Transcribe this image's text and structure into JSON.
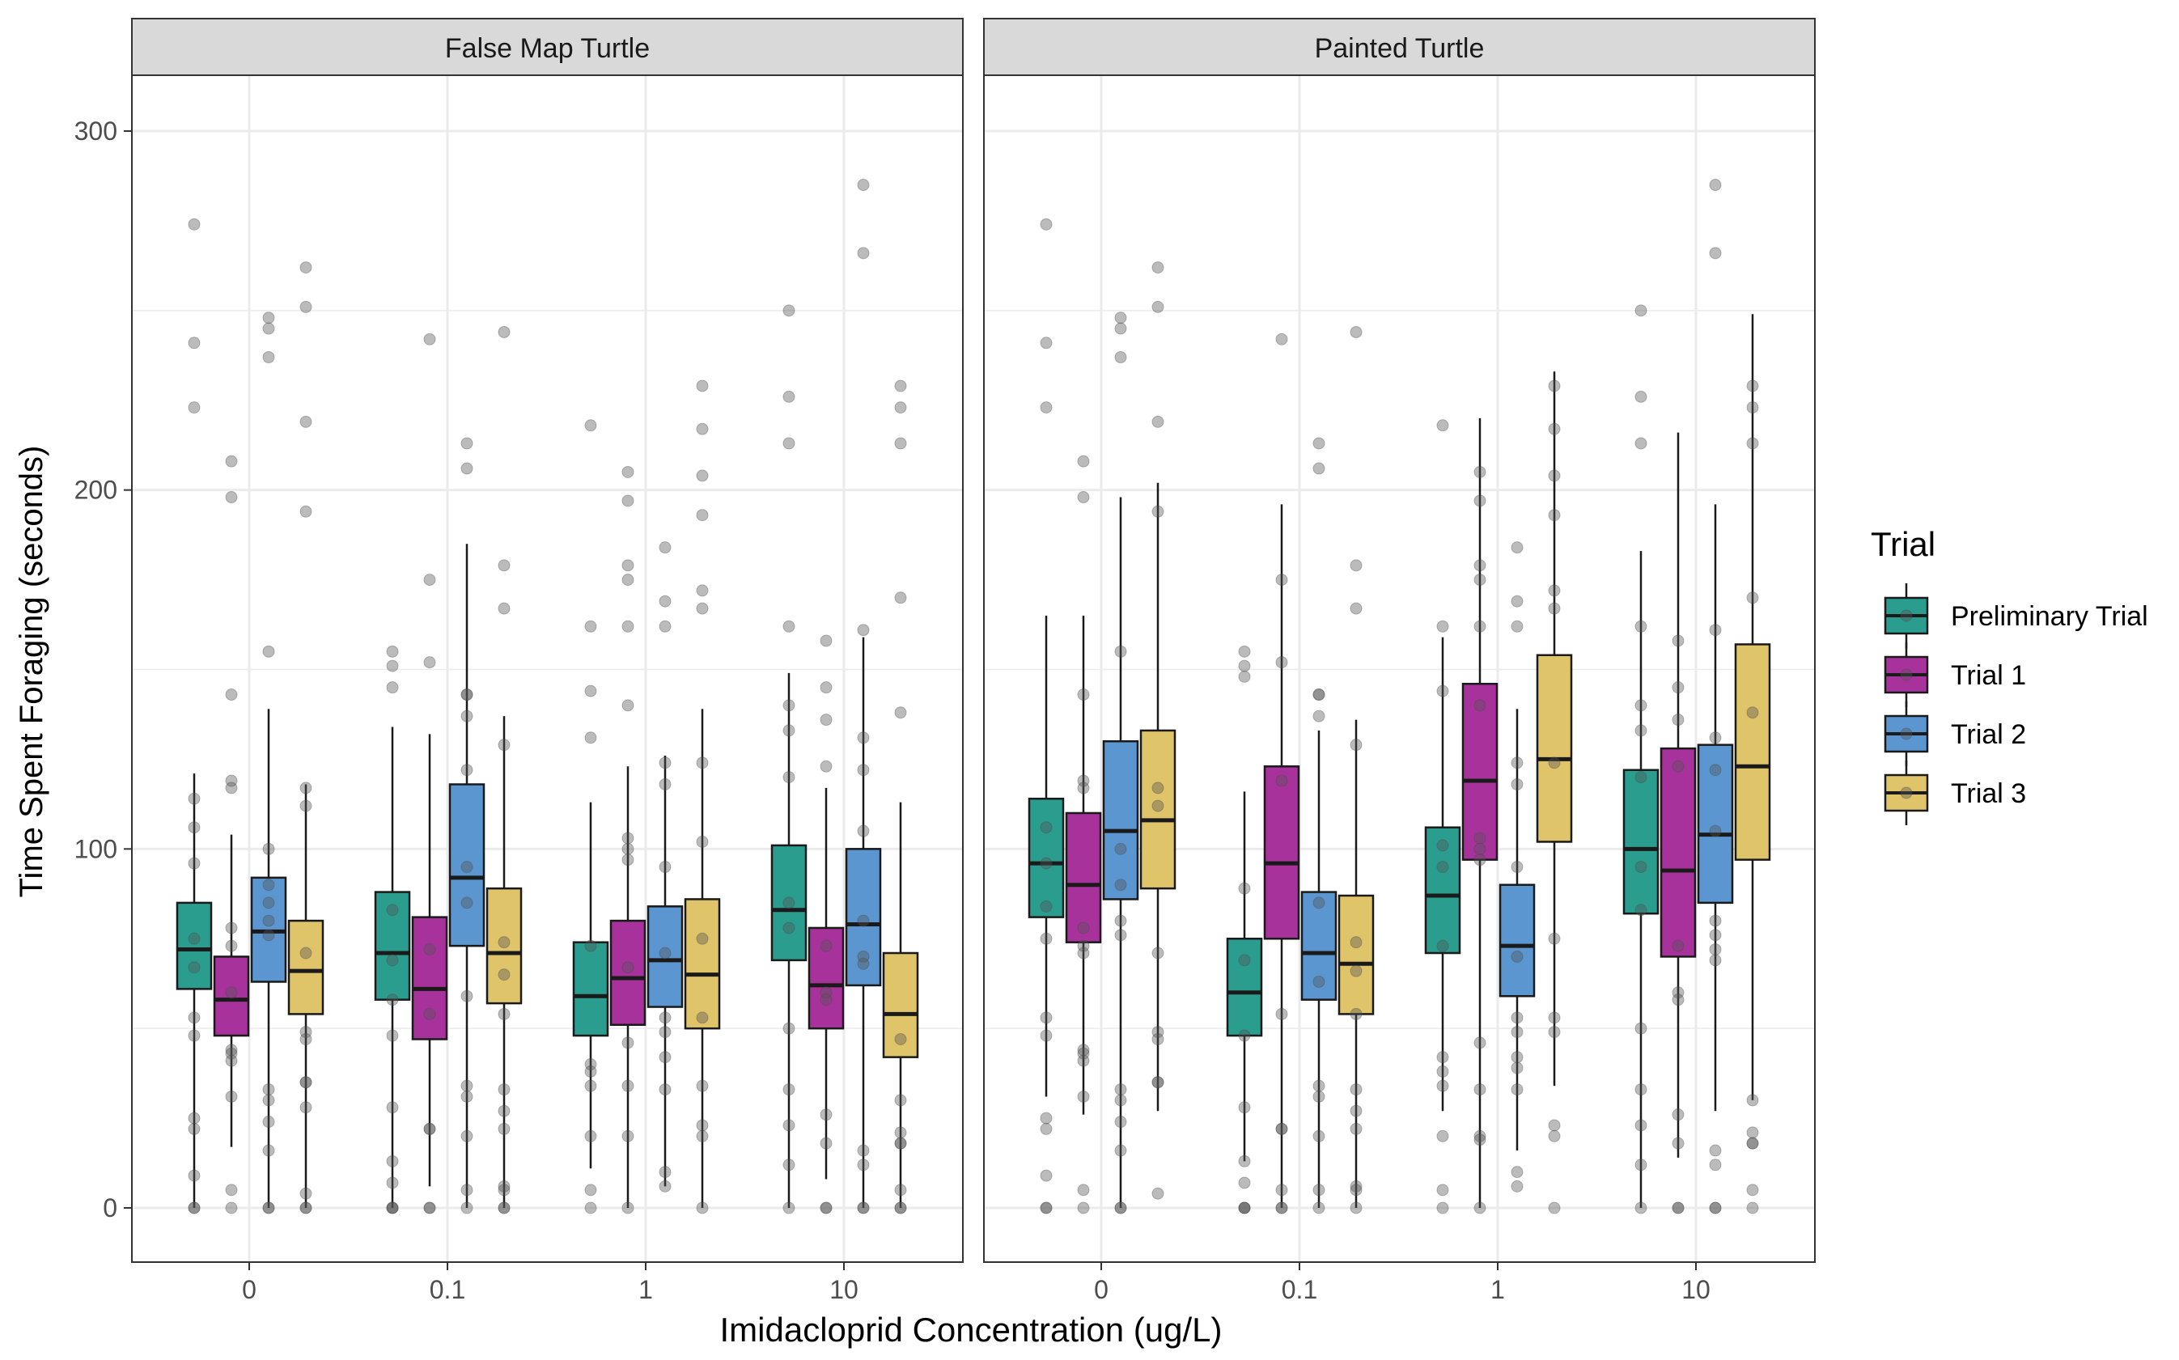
{
  "chart_data": {
    "type": "boxplot",
    "xlabel": "Imidacloprid Concentration (ug/L)",
    "ylabel": "Time Spent Foraging (seconds)",
    "ylim": [
      -15,
      315
    ],
    "y_ticks": [
      0,
      100,
      200,
      300
    ],
    "categories": [
      "0",
      "0.1",
      "1",
      "10"
    ],
    "grid": true,
    "legend": {
      "title": "Trial",
      "position": "right",
      "entries": [
        "Preliminary Trial",
        "Trial 1",
        "Trial 2",
        "Trial 3"
      ]
    },
    "colors": {
      "Preliminary Trial": "#2a9d8f",
      "Trial 1": "#a8329b",
      "Trial 2": "#5b96d0",
      "Trial 3": "#e0c46a",
      "points": "#555555",
      "strip_bg": "#d9d9d9",
      "grid": "#ebebeb"
    },
    "panels": [
      {
        "title": "False Map Turtle",
        "groups": [
          {
            "category": "0",
            "trial": "Preliminary Trial",
            "whisker_low": 0,
            "q1": 61,
            "median": 72,
            "q3": 85,
            "whisker_high": 121,
            "points": [
              274,
              241,
              223,
              114,
              106,
              96,
              75,
              67,
              53,
              48,
              25,
              22,
              9,
              0,
              0
            ]
          },
          {
            "category": "0",
            "trial": "Trial 1",
            "whisker_low": 17,
            "q1": 48,
            "median": 58,
            "q3": 70,
            "whisker_high": 104,
            "points": [
              208,
              198,
              143,
              119,
              117,
              78,
              73,
              60,
              44,
              43,
              41,
              31,
              5,
              0
            ]
          },
          {
            "category": "0",
            "trial": "Trial 2",
            "whisker_low": 0,
            "q1": 63,
            "median": 77,
            "q3": 92,
            "whisker_high": 139,
            "points": [
              248,
              245,
              237,
              155,
              100,
              90,
              85,
              80,
              76,
              33,
              30,
              24,
              16,
              0,
              0
            ]
          },
          {
            "category": "0",
            "trial": "Trial 3",
            "whisker_low": 0,
            "q1": 54,
            "median": 66,
            "q3": 80,
            "whisker_high": 118,
            "points": [
              262,
              251,
              219,
              194,
              117,
              112,
              71,
              49,
              47,
              35,
              35,
              28,
              4,
              0,
              0
            ]
          },
          {
            "category": "0.1",
            "trial": "Preliminary Trial",
            "whisker_low": 0,
            "q1": 58,
            "median": 71,
            "q3": 88,
            "whisker_high": 134,
            "points": [
              155,
              151,
              145,
              83,
              69,
              58,
              48,
              28,
              13,
              7,
              0,
              0,
              0
            ]
          },
          {
            "category": "0.1",
            "trial": "Trial 1",
            "whisker_low": 6,
            "q1": 47,
            "median": 61,
            "q3": 81,
            "whisker_high": 132,
            "points": [
              242,
              175,
              152,
              72,
              54,
              22,
              22,
              0,
              0
            ]
          },
          {
            "category": "0.1",
            "trial": "Trial 2",
            "whisker_low": 0,
            "q1": 73,
            "median": 92,
            "q3": 118,
            "whisker_high": 185,
            "points": [
              213,
              206,
              143,
              143,
              137,
              122,
              95,
              85,
              59,
              34,
              31,
              20,
              5,
              0
            ]
          },
          {
            "category": "0.1",
            "trial": "Trial 3",
            "whisker_low": 0,
            "q1": 57,
            "median": 71,
            "q3": 89,
            "whisker_high": 137,
            "points": [
              244,
              179,
              167,
              129,
              74,
              65,
              54,
              33,
              27,
              22,
              6,
              5,
              0,
              0
            ]
          },
          {
            "category": "1",
            "trial": "Preliminary Trial",
            "whisker_low": 11,
            "q1": 48,
            "median": 59,
            "q3": 74,
            "whisker_high": 113,
            "points": [
              218,
              162,
              144,
              131,
              73,
              40,
              38,
              34,
              20,
              5,
              0
            ]
          },
          {
            "category": "1",
            "trial": "Trial 1",
            "whisker_low": 0,
            "q1": 51,
            "median": 64,
            "q3": 80,
            "whisker_high": 123,
            "points": [
              205,
              197,
              179,
              175,
              162,
              140,
              103,
              100,
              97,
              67,
              46,
              34,
              20,
              0
            ]
          },
          {
            "category": "1",
            "trial": "Trial 2",
            "whisker_low": 6,
            "q1": 56,
            "median": 69,
            "q3": 84,
            "whisker_high": 126,
            "points": [
              184,
              169,
              162,
              124,
              118,
              95,
              71,
              53,
              49,
              42,
              33,
              10,
              6
            ]
          },
          {
            "category": "1",
            "trial": "Trial 3",
            "whisker_low": 0,
            "q1": 50,
            "median": 65,
            "q3": 86,
            "whisker_high": 139,
            "points": [
              229,
              217,
              204,
              193,
              172,
              167,
              124,
              102,
              75,
              53,
              34,
              23,
              20,
              0
            ]
          },
          {
            "category": "10",
            "trial": "Preliminary Trial",
            "whisker_low": 0,
            "q1": 69,
            "median": 83,
            "q3": 101,
            "whisker_high": 149,
            "points": [
              250,
              226,
              213,
              162,
              140,
              133,
              120,
              85,
              78,
              50,
              33,
              23,
              12,
              0
            ]
          },
          {
            "category": "10",
            "trial": "Trial 1",
            "whisker_low": 8,
            "q1": 50,
            "median": 62,
            "q3": 78,
            "whisker_high": 117,
            "points": [
              158,
              145,
              136,
              123,
              73,
              60,
              58,
              26,
              18,
              0,
              0
            ]
          },
          {
            "category": "10",
            "trial": "Trial 2",
            "whisker_low": 0,
            "q1": 62,
            "median": 79,
            "q3": 100,
            "whisker_high": 159,
            "points": [
              285,
              266,
              161,
              131,
              122,
              105,
              80,
              70,
              68,
              16,
              12,
              0,
              0
            ]
          },
          {
            "category": "10",
            "trial": "Trial 3",
            "whisker_low": 0,
            "q1": 42,
            "median": 54,
            "q3": 71,
            "whisker_high": 113,
            "points": [
              229,
              223,
              213,
              170,
              138,
              47,
              30,
              21,
              18,
              18,
              5,
              0,
              0
            ]
          }
        ]
      },
      {
        "title": "Painted Turtle",
        "groups": [
          {
            "category": "0",
            "trial": "Preliminary Trial",
            "whisker_low": 31,
            "q1": 81,
            "median": 96,
            "q3": 114,
            "whisker_high": 165,
            "points": [
              274,
              241,
              223,
              106,
              96,
              84,
              75,
              53,
              48,
              25,
              22,
              9,
              0,
              0
            ]
          },
          {
            "category": "0",
            "trial": "Trial 1",
            "whisker_low": 26,
            "q1": 74,
            "median": 90,
            "q3": 110,
            "whisker_high": 165,
            "points": [
              208,
              198,
              143,
              119,
              117,
              78,
              73,
              71,
              44,
              43,
              41,
              31,
              5,
              0
            ]
          },
          {
            "category": "0",
            "trial": "Trial 2",
            "whisker_low": 0,
            "q1": 86,
            "median": 105,
            "q3": 130,
            "whisker_high": 198,
            "points": [
              248,
              245,
              237,
              155,
              100,
              90,
              80,
              76,
              33,
              30,
              24,
              16,
              0,
              0
            ]
          },
          {
            "category": "0",
            "trial": "Trial 3",
            "whisker_low": 27,
            "q1": 89,
            "median": 108,
            "q3": 133,
            "whisker_high": 202,
            "points": [
              262,
              251,
              219,
              194,
              117,
              112,
              71,
              49,
              47,
              35,
              35,
              4
            ]
          },
          {
            "category": "0.1",
            "trial": "Preliminary Trial",
            "whisker_low": 13,
            "q1": 48,
            "median": 60,
            "q3": 75,
            "whisker_high": 116,
            "points": [
              155,
              151,
              148,
              89,
              69,
              48,
              28,
              13,
              7,
              0,
              0,
              0
            ]
          },
          {
            "category": "0.1",
            "trial": "Trial 1",
            "whisker_low": 0,
            "q1": 75,
            "median": 96,
            "q3": 123,
            "whisker_high": 196,
            "points": [
              242,
              175,
              152,
              119,
              54,
              22,
              22,
              5,
              0,
              0
            ]
          },
          {
            "category": "0.1",
            "trial": "Trial 2",
            "whisker_low": 0,
            "q1": 58,
            "median": 71,
            "q3": 88,
            "whisker_high": 133,
            "points": [
              213,
              206,
              143,
              143,
              137,
              85,
              63,
              34,
              31,
              20,
              5,
              0
            ]
          },
          {
            "category": "0.1",
            "trial": "Trial 3",
            "whisker_low": 0,
            "q1": 54,
            "median": 68,
            "q3": 87,
            "whisker_high": 136,
            "points": [
              244,
              179,
              167,
              129,
              74,
              66,
              54,
              33,
              27,
              22,
              6,
              5,
              0
            ]
          },
          {
            "category": "1",
            "trial": "Preliminary Trial",
            "whisker_low": 27,
            "q1": 71,
            "median": 87,
            "q3": 106,
            "whisker_high": 159,
            "points": [
              218,
              162,
              144,
              101,
              95,
              73,
              42,
              38,
              34,
              20,
              5,
              0
            ]
          },
          {
            "category": "1",
            "trial": "Trial 1",
            "whisker_low": 0,
            "q1": 97,
            "median": 119,
            "q3": 146,
            "whisker_high": 220,
            "points": [
              205,
              197,
              179,
              175,
              162,
              140,
              103,
              100,
              97,
              46,
              33,
              20,
              19,
              0
            ]
          },
          {
            "category": "1",
            "trial": "Trial 2",
            "whisker_low": 16,
            "q1": 59,
            "median": 73,
            "q3": 90,
            "whisker_high": 139,
            "points": [
              184,
              169,
              162,
              124,
              118,
              95,
              70,
              53,
              49,
              42,
              39,
              33,
              10,
              6
            ]
          },
          {
            "category": "1",
            "trial": "Trial 3",
            "whisker_low": 34,
            "q1": 102,
            "median": 125,
            "q3": 154,
            "whisker_high": 233,
            "points": [
              229,
              217,
              204,
              193,
              172,
              167,
              124,
              75,
              53,
              49,
              23,
              20,
              0
            ]
          },
          {
            "category": "10",
            "trial": "Preliminary Trial",
            "whisker_low": 0,
            "q1": 82,
            "median": 100,
            "q3": 122,
            "whisker_high": 183,
            "points": [
              250,
              226,
              213,
              162,
              140,
              133,
              120,
              95,
              83,
              50,
              33,
              23,
              12,
              0
            ]
          },
          {
            "category": "10",
            "trial": "Trial 1",
            "whisker_low": 14,
            "q1": 70,
            "median": 94,
            "q3": 128,
            "whisker_high": 216,
            "points": [
              158,
              145,
              136,
              123,
              73,
              60,
              58,
              26,
              18,
              0,
              0
            ]
          },
          {
            "category": "10",
            "trial": "Trial 2",
            "whisker_low": 27,
            "q1": 85,
            "median": 104,
            "q3": 129,
            "whisker_high": 196,
            "points": [
              285,
              266,
              161,
              131,
              122,
              105,
              80,
              76,
              72,
              69,
              16,
              12,
              0,
              0
            ]
          },
          {
            "category": "10",
            "trial": "Trial 3",
            "whisker_low": 30,
            "q1": 97,
            "median": 123,
            "q3": 157,
            "whisker_high": 249,
            "points": [
              229,
              223,
              213,
              170,
              138,
              30,
              21,
              18,
              18,
              5,
              0
            ]
          }
        ]
      }
    ]
  }
}
